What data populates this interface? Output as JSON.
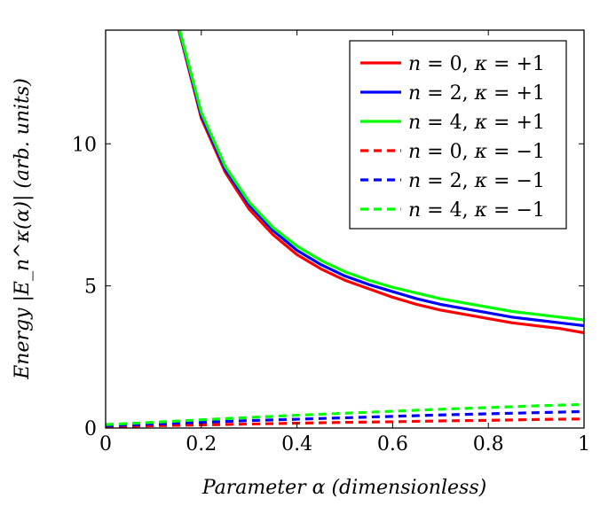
{
  "chart_data": {
    "type": "line",
    "title": "",
    "xlabel": "Parameter α (dimensionless)",
    "ylabel": "Energy |E_n^κ(α)| (arb. units)",
    "xlim": [
      0,
      1
    ],
    "ylim": [
      0,
      14
    ],
    "xticks": [
      0,
      0.2,
      0.4,
      0.6,
      0.8,
      1
    ],
    "xtick_labels": [
      "0",
      "0.2",
      "0.4",
      "0.6",
      "0.8",
      "1"
    ],
    "yticks": [
      0,
      5,
      10
    ],
    "ytick_labels": [
      "0",
      "5",
      "10"
    ],
    "grid": false,
    "legend_position": "top-right",
    "series": [
      {
        "name": "n = 0, κ = +1",
        "color": "#ff0000",
        "dash": "solid",
        "x": [
          0.15,
          0.2,
          0.25,
          0.3,
          0.35,
          0.4,
          0.45,
          0.5,
          0.55,
          0.6,
          0.65,
          0.7,
          0.75,
          0.8,
          0.85,
          0.9,
          0.95,
          1.0
        ],
        "y": [
          14.2,
          10.9,
          9.0,
          7.7,
          6.8,
          6.1,
          5.6,
          5.2,
          4.9,
          4.6,
          4.35,
          4.15,
          4.0,
          3.85,
          3.7,
          3.6,
          3.5,
          3.35
        ]
      },
      {
        "name": "n = 2, κ = +1",
        "color": "#0000ff",
        "dash": "solid",
        "x": [
          0.15,
          0.2,
          0.25,
          0.3,
          0.35,
          0.4,
          0.45,
          0.5,
          0.55,
          0.6,
          0.65,
          0.7,
          0.75,
          0.8,
          0.85,
          0.9,
          0.95,
          1.0
        ],
        "y": [
          14.25,
          11.0,
          9.1,
          7.85,
          6.95,
          6.25,
          5.75,
          5.35,
          5.05,
          4.8,
          4.55,
          4.35,
          4.2,
          4.05,
          3.9,
          3.8,
          3.7,
          3.6
        ]
      },
      {
        "name": "n = 4, κ = +1",
        "color": "#00ff00",
        "dash": "solid",
        "x": [
          0.15,
          0.2,
          0.25,
          0.3,
          0.35,
          0.4,
          0.45,
          0.5,
          0.55,
          0.6,
          0.65,
          0.7,
          0.75,
          0.8,
          0.85,
          0.9,
          0.95,
          1.0
        ],
        "y": [
          14.3,
          11.1,
          9.2,
          7.95,
          7.05,
          6.4,
          5.9,
          5.5,
          5.2,
          4.95,
          4.75,
          4.55,
          4.4,
          4.25,
          4.1,
          4.0,
          3.9,
          3.8
        ]
      },
      {
        "name": "n = 0, κ = −1",
        "color": "#ff0000",
        "dash": "dashed",
        "x": [
          0,
          0.1,
          0.2,
          0.3,
          0.4,
          0.5,
          0.6,
          0.7,
          0.8,
          0.9,
          1.0
        ],
        "y": [
          0.05,
          0.08,
          0.11,
          0.14,
          0.17,
          0.2,
          0.22,
          0.25,
          0.27,
          0.3,
          0.32
        ]
      },
      {
        "name": "n = 2, κ = −1",
        "color": "#0000ff",
        "dash": "dashed",
        "x": [
          0,
          0.1,
          0.2,
          0.3,
          0.4,
          0.5,
          0.6,
          0.7,
          0.8,
          0.9,
          1.0
        ],
        "y": [
          0.08,
          0.14,
          0.2,
          0.26,
          0.31,
          0.36,
          0.41,
          0.46,
          0.5,
          0.54,
          0.58
        ]
      },
      {
        "name": "n = 4, κ = −1",
        "color": "#00ff00",
        "dash": "dashed",
        "x": [
          0,
          0.1,
          0.2,
          0.3,
          0.4,
          0.5,
          0.6,
          0.7,
          0.8,
          0.9,
          1.0
        ],
        "y": [
          0.12,
          0.2,
          0.29,
          0.37,
          0.45,
          0.52,
          0.59,
          0.66,
          0.72,
          0.78,
          0.83
        ]
      }
    ],
    "legend": [
      {
        "n": "n",
        "n_val": "0",
        "kappa": "κ",
        "sign": "+1"
      },
      {
        "n": "n",
        "n_val": "2",
        "kappa": "κ",
        "sign": "+1"
      },
      {
        "n": "n",
        "n_val": "4",
        "kappa": "κ",
        "sign": "+1"
      },
      {
        "n": "n",
        "n_val": "0",
        "kappa": "κ",
        "sign": "−1"
      },
      {
        "n": "n",
        "n_val": "2",
        "kappa": "κ",
        "sign": "−1"
      },
      {
        "n": "n",
        "n_val": "4",
        "kappa": "κ",
        "sign": "−1"
      }
    ]
  }
}
